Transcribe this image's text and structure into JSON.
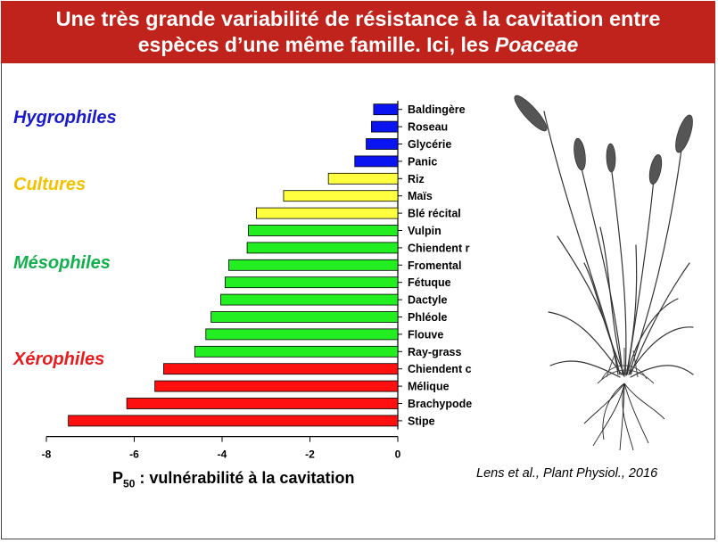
{
  "header": {
    "title_line1": "Une très grande variabilité de résistance à la cavitation entre",
    "title_line2_prefix": "espèces d’une même famille. Ici, les ",
    "title_line2_italic": "Poaceae"
  },
  "groups": [
    {
      "label": "Hygrophiles",
      "color": "#1a1acc"
    },
    {
      "label": "Cultures",
      "color": "#f2c200"
    },
    {
      "label": "Mésophiles",
      "color": "#12b04c"
    },
    {
      "label": "Xérophiles",
      "color": "#e81c1c"
    }
  ],
  "caption": {
    "p": "P",
    "sub": "50",
    "rest": " : vulnérabilité à la cavitation"
  },
  "source": "Lens et al., Plant Physiol., 2016",
  "chart_data": {
    "type": "bar",
    "orientation": "horizontal",
    "xlim": [
      -8,
      0
    ],
    "xticks": [
      -8,
      -6,
      -4,
      -2,
      0
    ],
    "xlabel": "P50 : vulnérabilité à la cavitation",
    "categories": [
      "Baldingère",
      "Roseau",
      "Glycérie",
      "Panic",
      "Riz",
      "Maïs",
      "Blé récital",
      "Vulpin",
      "Chiendent r",
      "Fromental",
      "Fétuque",
      "Dactyle",
      "Phléole",
      "Flouve",
      "Ray-grass",
      "Chiendent c",
      "Mélique",
      "Brachypode",
      "Stipe"
    ],
    "values": [
      -0.55,
      -0.6,
      -0.72,
      -0.98,
      -1.58,
      -2.6,
      -3.22,
      -3.4,
      -3.43,
      -3.85,
      -3.93,
      -4.03,
      -4.25,
      -4.37,
      -4.62,
      -5.33,
      -5.53,
      -6.17,
      -7.5
    ],
    "group": [
      "Hygrophiles",
      "Hygrophiles",
      "Hygrophiles",
      "Hygrophiles",
      "Cultures",
      "Cultures",
      "Cultures",
      "Mésophiles",
      "Mésophiles",
      "Mésophiles",
      "Mésophiles",
      "Mésophiles",
      "Mésophiles",
      "Mésophiles",
      "Mésophiles",
      "Xérophiles",
      "Xérophiles",
      "Xérophiles",
      "Xérophiles"
    ],
    "colors": {
      "Hygrophiles": "#0a14f0",
      "Cultures": "#ffff40",
      "Mésophiles": "#22ee22",
      "Xérophiles": "#ff1010"
    }
  }
}
